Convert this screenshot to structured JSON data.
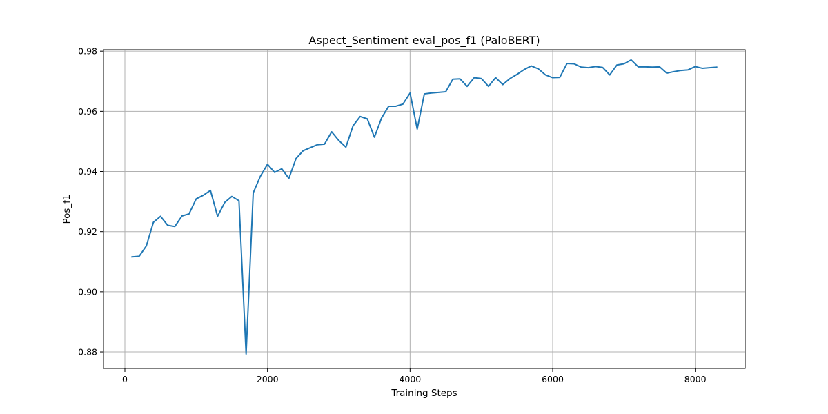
{
  "chart_data": {
    "type": "line",
    "title": "Aspect_Sentiment eval_pos_f1 (PaloBERT)",
    "xlabel": "Training Steps",
    "ylabel": "Pos_f1",
    "xlim": [
      -300,
      8700
    ],
    "ylim": [
      0.8745,
      0.9805
    ],
    "grid": true,
    "line_color": "#1f77b4",
    "x_ticks": [
      0,
      2000,
      4000,
      6000,
      8000
    ],
    "x_tick_labels": [
      "0",
      "2000",
      "4000",
      "6000",
      "8000"
    ],
    "y_ticks": [
      0.88,
      0.9,
      0.92,
      0.94,
      0.96,
      0.98
    ],
    "y_tick_labels": [
      "0.88",
      "0.90",
      "0.92",
      "0.94",
      "0.96",
      "0.98"
    ],
    "series": [
      {
        "x": [
          100,
          200,
          300,
          400,
          500,
          600,
          700,
          800,
          900,
          1000,
          1100,
          1200,
          1300,
          1400,
          1500,
          1600,
          1700,
          1800,
          1900,
          2000,
          2100,
          2200,
          2300,
          2400,
          2500,
          2600,
          2700,
          2800,
          2900,
          3000,
          3100,
          3200,
          3300,
          3400,
          3500,
          3600,
          3700,
          3800,
          3900,
          4000,
          4100,
          4200,
          4300,
          4400,
          4500,
          4600,
          4700,
          4800,
          4900,
          5000,
          5100,
          5200,
          5300,
          5400,
          5500,
          5600,
          5700,
          5800,
          5900,
          6000,
          6100,
          6200,
          6300,
          6400,
          6500,
          6600,
          6700,
          6800,
          6900,
          7000,
          7100,
          7200,
          7300,
          7400,
          7500,
          7600,
          7700,
          7800,
          7900,
          8000,
          8100,
          8200,
          8300
        ],
        "values": [
          0.9116,
          0.9118,
          0.9152,
          0.9231,
          0.9251,
          0.9221,
          0.9217,
          0.9252,
          0.9259,
          0.9309,
          0.9321,
          0.9337,
          0.9251,
          0.9297,
          0.9317,
          0.9303,
          0.8793,
          0.9329,
          0.9384,
          0.9424,
          0.9397,
          0.9409,
          0.9377,
          0.9443,
          0.9469,
          0.9479,
          0.9489,
          0.9491,
          0.9532,
          0.9503,
          0.9481,
          0.9552,
          0.9583,
          0.9575,
          0.9514,
          0.9578,
          0.9617,
          0.9617,
          0.9624,
          0.9661,
          0.9541,
          0.9658,
          0.9661,
          0.9663,
          0.9665,
          0.9707,
          0.9708,
          0.9683,
          0.9712,
          0.9709,
          0.9683,
          0.9712,
          0.9689,
          0.9709,
          0.9723,
          0.9739,
          0.9751,
          0.9741,
          0.9721,
          0.9712,
          0.9713,
          0.9759,
          0.9758,
          0.9747,
          0.9745,
          0.9749,
          0.9746,
          0.9721,
          0.9754,
          0.9758,
          0.9771,
          0.9748,
          0.9748,
          0.9747,
          0.9748,
          0.9727,
          0.9732,
          0.9736,
          0.9738,
          0.9749,
          0.9743,
          0.9745,
          0.9747
        ]
      }
    ]
  }
}
